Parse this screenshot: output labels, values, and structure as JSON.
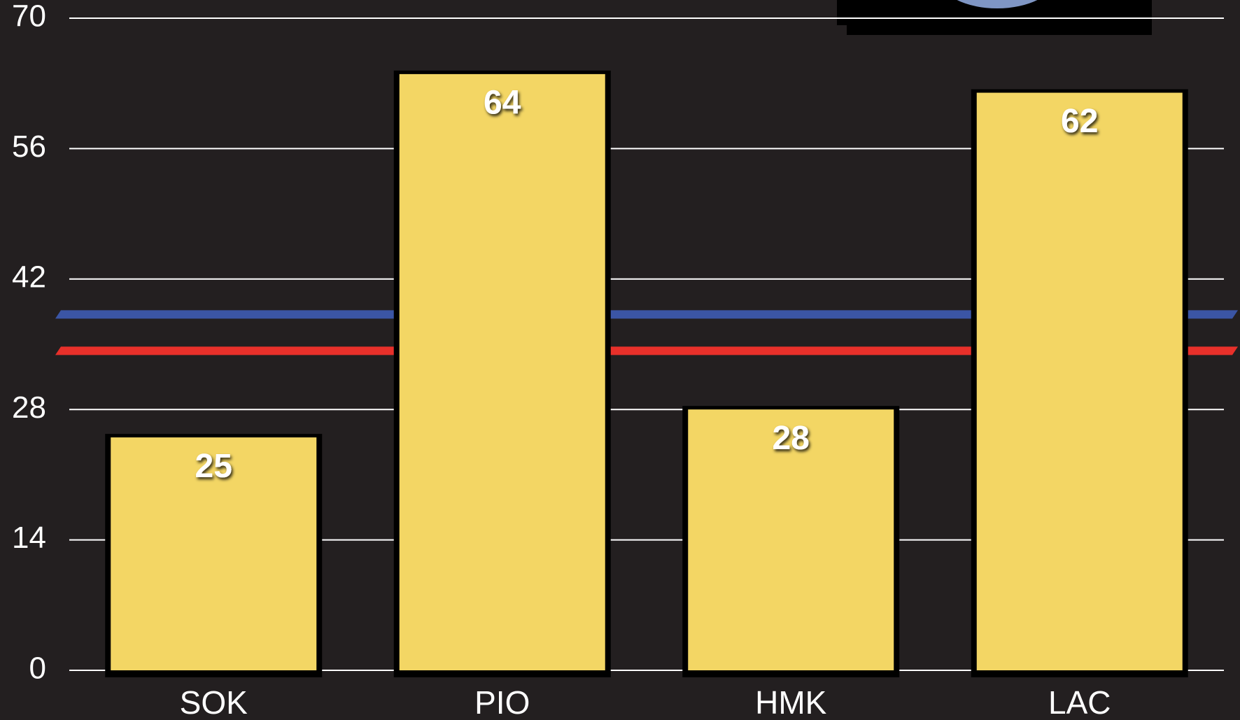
{
  "chart_data": {
    "type": "bar",
    "categories": [
      "SOK",
      "PIO",
      "HMK",
      "LAC"
    ],
    "values": [
      25,
      64,
      28,
      62
    ],
    "color": "#f3d664",
    "ylim": [
      0,
      70
    ],
    "yticks": [
      0,
      14,
      28,
      42,
      56,
      70
    ],
    "grid": true,
    "reference_lines": [
      {
        "value": 38.2,
        "color": "#3b55a5"
      },
      {
        "value": 34.3,
        "color": "#e8302a"
      }
    ]
  }
}
